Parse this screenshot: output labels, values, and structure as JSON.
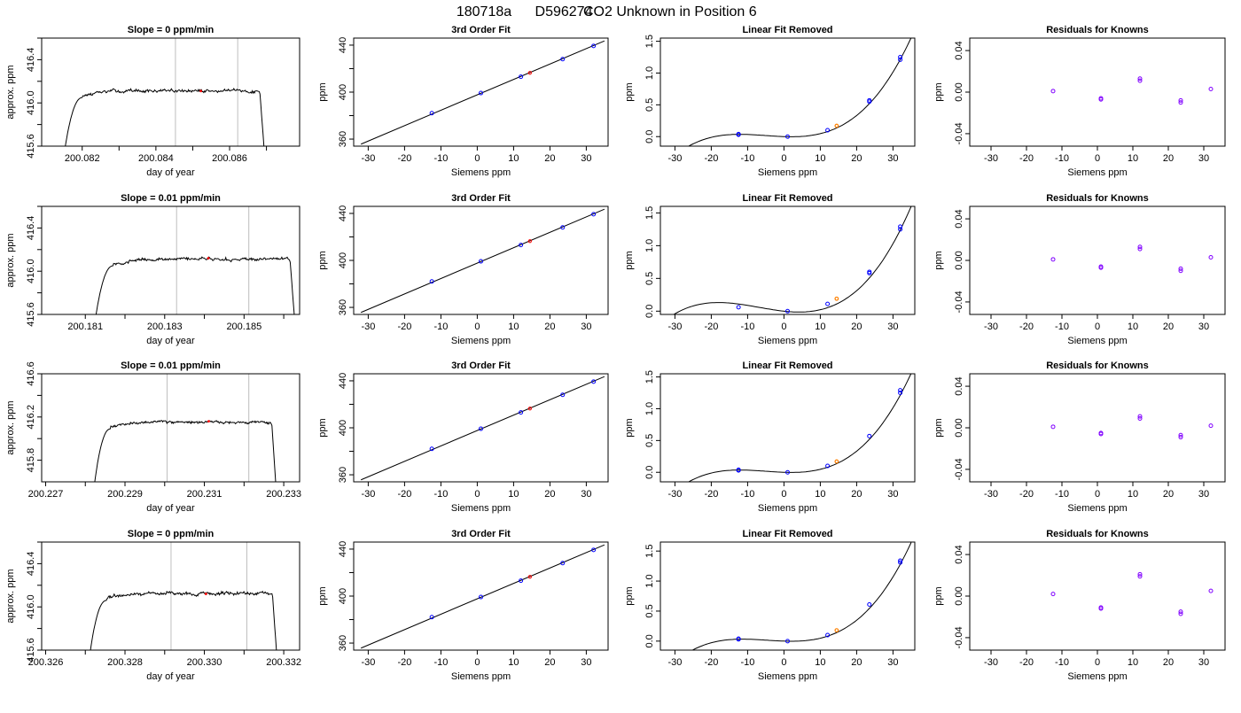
{
  "header": {
    "run_id": "180718a",
    "tank_id": "D596274",
    "description": "CO2 Unknown in Position  6"
  },
  "colors": {
    "known_point": "#0000ff",
    "unknown_point": "#ff0000",
    "unknown_point_resid": "#ff8000",
    "residual_point": "#8000ff",
    "trace": "#000000",
    "guide_line": "#bebebe"
  },
  "chart_data": [
    {
      "type": "line",
      "row": 0,
      "panel": "trace",
      "title": "Slope =  0  ppm/min",
      "xlabel": "day of year",
      "ylabel": "approx. ppm",
      "xlim": [
        200.0809,
        200.0879
      ],
      "ylim": [
        415.6,
        416.6
      ],
      "xticks": [
        200.082,
        200.084,
        200.086
      ],
      "yticks": [
        415.6,
        416.0,
        416.4
      ],
      "window": [
        200.08152,
        200.08695
      ],
      "plateau": 416.11,
      "noise": 0.025,
      "guide_lines_x": [
        200.08453,
        200.08622
      ],
      "marker": {
        "x": 200.08522,
        "y": 416.11
      }
    },
    {
      "type": "scatter",
      "row": 0,
      "panel": "fit",
      "title": "3rd Order Fit",
      "xlabel": "Siemens ppm",
      "ylabel": "ppm",
      "xlim": [
        -34,
        36
      ],
      "ylim": [
        354,
        446
      ],
      "xticks": [
        -30,
        -20,
        -10,
        0,
        10,
        20,
        30
      ],
      "yticks": [
        360,
        400,
        440
      ],
      "fit_line": {
        "x": [
          -32,
          35
        ],
        "y": [
          355.7,
          443.6
        ]
      },
      "knowns": [
        {
          "x": -12.5,
          "y": 382.1
        },
        {
          "x": 1,
          "y": 399.2
        },
        {
          "x": 12,
          "y": 413.1
        },
        {
          "x": 23.5,
          "y": 428.1
        },
        {
          "x": 32,
          "y": 439.3
        }
      ],
      "unknown": {
        "x": 14.5,
        "y": 416.4
      }
    },
    {
      "type": "scatter",
      "row": 0,
      "panel": "nonlinear",
      "title": "Linear Fit Removed",
      "xlabel": "Siemens ppm",
      "ylabel": "ppm",
      "xlim": [
        -34,
        36
      ],
      "ylim": [
        -0.15,
        1.55
      ],
      "xticks": [
        -30,
        -20,
        -10,
        0,
        10,
        20,
        30
      ],
      "yticks": [
        0.0,
        0.5,
        1.0,
        1.5
      ],
      "curve_coeffs": [
        0.0,
        -0.002,
        0.0004,
        2.65e-05
      ],
      "curve_x": [
        -32,
        35
      ],
      "knowns": [
        {
          "x": -12.5,
          "y": 0.04
        },
        {
          "x": -12.5,
          "y": 0.03
        },
        {
          "x": 1,
          "y": 0.0
        },
        {
          "x": 12,
          "y": 0.1
        },
        {
          "x": 23.5,
          "y": 0.57
        },
        {
          "x": 23.5,
          "y": 0.55
        },
        {
          "x": 32,
          "y": 1.21
        },
        {
          "x": 32,
          "y": 1.25
        }
      ],
      "unknown": {
        "x": 14.5,
        "y": 0.17
      }
    },
    {
      "type": "scatter",
      "row": 0,
      "panel": "residuals",
      "title": "Residuals for Knowns",
      "xlabel": "Siemens ppm",
      "ylabel": "ppm",
      "xlim": [
        -36,
        36
      ],
      "ylim": [
        -0.052,
        0.052
      ],
      "xticks": [
        -30,
        -20,
        -10,
        0,
        10,
        20,
        30
      ],
      "yticks": [
        -0.04,
        0.0,
        0.04
      ],
      "points": [
        {
          "x": -12.5,
          "y": 0.001
        },
        {
          "x": 1,
          "y": -0.007
        },
        {
          "x": 1,
          "y": -0.006
        },
        {
          "x": 12,
          "y": 0.011
        },
        {
          "x": 12,
          "y": 0.013
        },
        {
          "x": 23.5,
          "y": -0.01
        },
        {
          "x": 23.5,
          "y": -0.008
        },
        {
          "x": 32,
          "y": 0.003
        }
      ]
    },
    {
      "type": "line",
      "row": 1,
      "panel": "trace",
      "title": "Slope =  0.01  ppm/min",
      "xlabel": "day of year",
      "ylabel": "approx. ppm",
      "xlim": [
        200.1799,
        200.1864
      ],
      "ylim": [
        415.6,
        416.6
      ],
      "xticks": [
        200.181,
        200.183,
        200.185
      ],
      "yticks": [
        415.6,
        416.0,
        416.4
      ],
      "window": [
        200.18125,
        200.18628
      ],
      "plateau": 416.11,
      "noise": 0.025,
      "guide_lines_x": [
        200.1833,
        200.18512
      ],
      "marker": {
        "x": 200.1841,
        "y": 416.12
      }
    },
    {
      "type": "scatter",
      "row": 1,
      "panel": "fit",
      "title": "3rd Order Fit",
      "xlabel": "Siemens ppm",
      "ylabel": "ppm",
      "xlim": [
        -34,
        36
      ],
      "ylim": [
        354,
        446
      ],
      "xticks": [
        -30,
        -20,
        -10,
        0,
        10,
        20,
        30
      ],
      "yticks": [
        360,
        400,
        440
      ],
      "fit_line": {
        "x": [
          -32,
          35
        ],
        "y": [
          355.7,
          443.6
        ]
      },
      "knowns": [
        {
          "x": -12.5,
          "y": 382.1
        },
        {
          "x": 1,
          "y": 399.2
        },
        {
          "x": 12,
          "y": 413.1
        },
        {
          "x": 23.5,
          "y": 428.1
        },
        {
          "x": 32,
          "y": 439.3
        }
      ],
      "unknown": {
        "x": 14.5,
        "y": 416.4
      }
    },
    {
      "type": "scatter",
      "row": 1,
      "panel": "nonlinear",
      "title": "Linear Fit Removed",
      "xlabel": "Siemens ppm",
      "ylabel": "ppm",
      "xlim": [
        -34,
        36
      ],
      "ylim": [
        -0.05,
        1.6
      ],
      "xticks": [
        -30,
        -20,
        -10,
        0,
        10,
        20,
        30
      ],
      "yticks": [
        0.0,
        0.5,
        1.0,
        1.5
      ],
      "curve_coeffs": [
        0.0,
        -0.006,
        0.00055,
        2.65e-05
      ],
      "curve_x": [
        -32,
        35
      ],
      "knowns": [
        {
          "x": -12.5,
          "y": 0.06
        },
        {
          "x": 1,
          "y": 0.0
        },
        {
          "x": 12,
          "y": 0.11
        },
        {
          "x": 23.5,
          "y": 0.6
        },
        {
          "x": 23.5,
          "y": 0.58
        },
        {
          "x": 32,
          "y": 1.25
        },
        {
          "x": 32,
          "y": 1.29
        }
      ],
      "unknown": {
        "x": 14.5,
        "y": 0.19
      }
    },
    {
      "type": "scatter",
      "row": 1,
      "panel": "residuals",
      "title": "Residuals for Knowns",
      "xlabel": "Siemens ppm",
      "ylabel": "ppm",
      "xlim": [
        -36,
        36
      ],
      "ylim": [
        -0.052,
        0.052
      ],
      "xticks": [
        -30,
        -20,
        -10,
        0,
        10,
        20,
        30
      ],
      "yticks": [
        -0.04,
        0.0,
        0.04
      ],
      "points": [
        {
          "x": -12.5,
          "y": 0.001
        },
        {
          "x": 1,
          "y": -0.007
        },
        {
          "x": 1,
          "y": -0.006
        },
        {
          "x": 12,
          "y": 0.011
        },
        {
          "x": 12,
          "y": 0.013
        },
        {
          "x": 23.5,
          "y": -0.01
        },
        {
          "x": 23.5,
          "y": -0.008
        },
        {
          "x": 32,
          "y": 0.003
        }
      ]
    },
    {
      "type": "line",
      "row": 2,
      "panel": "trace",
      "title": "Slope =  0.01  ppm/min",
      "xlabel": "day of year",
      "ylabel": "approx. ppm",
      "xlim": [
        200.2269,
        200.2334
      ],
      "ylim": [
        415.6,
        416.6
      ],
      "xticks": [
        200.227,
        200.229,
        200.231,
        200.233
      ],
      "yticks": [
        415.8,
        416.2,
        416.6
      ],
      "window": [
        200.22822,
        200.23281
      ],
      "plateau": 416.15,
      "noise": 0.02,
      "guide_lines_x": [
        200.23006,
        200.23212
      ],
      "marker": {
        "x": 200.23111,
        "y": 416.16
      }
    },
    {
      "type": "scatter",
      "row": 2,
      "panel": "fit",
      "title": "3rd Order Fit",
      "xlabel": "Siemens ppm",
      "ylabel": "ppm",
      "xlim": [
        -34,
        36
      ],
      "ylim": [
        354,
        446
      ],
      "xticks": [
        -30,
        -20,
        -10,
        0,
        10,
        20,
        30
      ],
      "yticks": [
        360,
        400,
        440
      ],
      "fit_line": {
        "x": [
          -32,
          35
        ],
        "y": [
          355.7,
          443.6
        ]
      },
      "knowns": [
        {
          "x": -12.5,
          "y": 382.1
        },
        {
          "x": 1,
          "y": 399.2
        },
        {
          "x": 12,
          "y": 413.1
        },
        {
          "x": 23.5,
          "y": 428.1
        },
        {
          "x": 32,
          "y": 439.3
        }
      ],
      "unknown": {
        "x": 14.5,
        "y": 416.4
      }
    },
    {
      "type": "scatter",
      "row": 2,
      "panel": "nonlinear",
      "title": "Linear Fit Removed",
      "xlabel": "Siemens ppm",
      "ylabel": "ppm",
      "xlim": [
        -34,
        36
      ],
      "ylim": [
        -0.15,
        1.55
      ],
      "xticks": [
        -30,
        -20,
        -10,
        0,
        10,
        20,
        30
      ],
      "yticks": [
        0.0,
        0.5,
        1.0,
        1.5
      ],
      "curve_coeffs": [
        0.0,
        -0.002,
        0.0004,
        2.65e-05
      ],
      "curve_x": [
        -32,
        35
      ],
      "knowns": [
        {
          "x": -12.5,
          "y": 0.04
        },
        {
          "x": -12.5,
          "y": 0.03
        },
        {
          "x": 1,
          "y": 0.0
        },
        {
          "x": 12,
          "y": 0.1
        },
        {
          "x": 23.5,
          "y": 0.57
        },
        {
          "x": 32,
          "y": 1.25
        },
        {
          "x": 32,
          "y": 1.29
        }
      ],
      "unknown": {
        "x": 14.5,
        "y": 0.17
      }
    },
    {
      "type": "scatter",
      "row": 2,
      "panel": "residuals",
      "title": "Residuals for Knowns",
      "xlabel": "Siemens ppm",
      "ylabel": "ppm",
      "xlim": [
        -36,
        36
      ],
      "ylim": [
        -0.052,
        0.052
      ],
      "xticks": [
        -30,
        -20,
        -10,
        0,
        10,
        20,
        30
      ],
      "yticks": [
        -0.04,
        0.0,
        0.04
      ],
      "points": [
        {
          "x": -12.5,
          "y": 0.001
        },
        {
          "x": 1,
          "y": -0.006
        },
        {
          "x": 1,
          "y": -0.005
        },
        {
          "x": 12,
          "y": 0.009
        },
        {
          "x": 12,
          "y": 0.011
        },
        {
          "x": 23.5,
          "y": -0.009
        },
        {
          "x": 23.5,
          "y": -0.007
        },
        {
          "x": 32,
          "y": 0.002
        }
      ]
    },
    {
      "type": "line",
      "row": 3,
      "panel": "trace",
      "title": "Slope =  0  ppm/min",
      "xlabel": "day of year",
      "ylabel": "approx. ppm",
      "xlim": [
        200.3259,
        200.3324
      ],
      "ylim": [
        415.6,
        416.6
      ],
      "xticks": [
        200.326,
        200.328,
        200.33,
        200.332
      ],
      "yticks": [
        415.6,
        416.0,
        416.4
      ],
      "window": [
        200.32711,
        200.33183
      ],
      "plateau": 416.12,
      "noise": 0.025,
      "guide_lines_x": [
        200.32916,
        200.33107
      ],
      "marker": {
        "x": 200.33004,
        "y": 416.12
      }
    },
    {
      "type": "scatter",
      "row": 3,
      "panel": "fit",
      "title": "3rd Order Fit",
      "xlabel": "Siemens ppm",
      "ylabel": "ppm",
      "xlim": [
        -34,
        36
      ],
      "ylim": [
        354,
        446
      ],
      "xticks": [
        -30,
        -20,
        -10,
        0,
        10,
        20,
        30
      ],
      "yticks": [
        360,
        400,
        440
      ],
      "fit_line": {
        "x": [
          -32,
          35
        ],
        "y": [
          355.7,
          443.6
        ]
      },
      "knowns": [
        {
          "x": -12.5,
          "y": 382.1
        },
        {
          "x": 1,
          "y": 399.2
        },
        {
          "x": 12,
          "y": 413.1
        },
        {
          "x": 23.5,
          "y": 428.1
        },
        {
          "x": 32,
          "y": 439.3
        }
      ],
      "unknown": {
        "x": 14.5,
        "y": 416.4
      }
    },
    {
      "type": "scatter",
      "row": 3,
      "panel": "nonlinear",
      "title": "Linear Fit Removed",
      "xlabel": "Siemens ppm",
      "ylabel": "ppm",
      "xlim": [
        -34,
        36
      ],
      "ylim": [
        -0.15,
        1.65
      ],
      "xticks": [
        -30,
        -20,
        -10,
        0,
        10,
        20,
        30
      ],
      "yticks": [
        0.0,
        0.5,
        1.0,
        1.5
      ],
      "curve_coeffs": [
        0.0,
        -0.002,
        0.0004,
        2.85e-05
      ],
      "curve_x": [
        -32,
        35
      ],
      "knowns": [
        {
          "x": -12.5,
          "y": 0.04
        },
        {
          "x": -12.5,
          "y": 0.03
        },
        {
          "x": 1,
          "y": 0.0
        },
        {
          "x": 12,
          "y": 0.1
        },
        {
          "x": 23.5,
          "y": 0.61
        },
        {
          "x": 32,
          "y": 1.31
        },
        {
          "x": 32,
          "y": 1.34
        }
      ],
      "unknown": {
        "x": 14.5,
        "y": 0.18
      }
    },
    {
      "type": "scatter",
      "row": 3,
      "panel": "residuals",
      "title": "Residuals for Knowns",
      "xlabel": "Siemens ppm",
      "ylabel": "ppm",
      "xlim": [
        -36,
        36
      ],
      "ylim": [
        -0.052,
        0.052
      ],
      "xticks": [
        -30,
        -20,
        -10,
        0,
        10,
        20,
        30
      ],
      "yticks": [
        -0.04,
        0.0,
        0.04
      ],
      "points": [
        {
          "x": -12.5,
          "y": 0.002
        },
        {
          "x": 1,
          "y": -0.012
        },
        {
          "x": 1,
          "y": -0.011
        },
        {
          "x": 12,
          "y": 0.019
        },
        {
          "x": 12,
          "y": 0.021
        },
        {
          "x": 23.5,
          "y": -0.017
        },
        {
          "x": 23.5,
          "y": -0.015
        },
        {
          "x": 32,
          "y": 0.005
        }
      ]
    }
  ]
}
